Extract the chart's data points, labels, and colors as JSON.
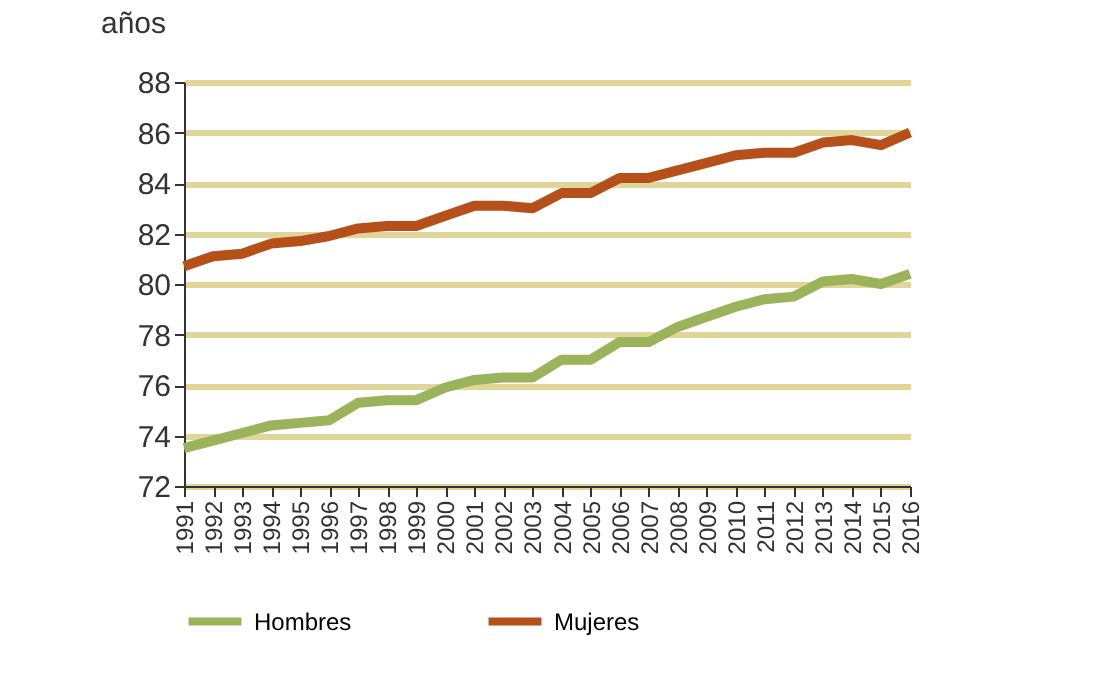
{
  "chart_data": {
    "type": "line",
    "ylabel": "años",
    "categories": [
      "1991",
      "1992",
      "1993",
      "1994",
      "1995",
      "1996",
      "1997",
      "1998",
      "1999",
      "2000",
      "2001",
      "2002",
      "2003",
      "2004",
      "2005",
      "2006",
      "2007",
      "2008",
      "2009",
      "2010",
      "2011",
      "2012",
      "2013",
      "2014",
      "2015",
      "2016"
    ],
    "series": [
      {
        "name": "Hombres",
        "color": "#9bb35a",
        "values": [
          73.5,
          73.8,
          74.1,
          74.4,
          74.5,
          74.6,
          75.3,
          75.4,
          75.4,
          75.9,
          76.2,
          76.3,
          76.3,
          77.0,
          77.0,
          77.7,
          77.7,
          78.3,
          78.7,
          79.1,
          79.4,
          79.5,
          80.1,
          80.2,
          80.0,
          80.4
        ]
      },
      {
        "name": "Mujeres",
        "color": "#b5501a",
        "values": [
          80.7,
          81.1,
          81.2,
          81.6,
          81.7,
          81.9,
          82.2,
          82.3,
          82.3,
          82.7,
          83.1,
          83.1,
          83.0,
          83.6,
          83.6,
          84.2,
          84.2,
          84.5,
          84.8,
          85.1,
          85.2,
          85.2,
          85.6,
          85.7,
          85.5,
          86.0
        ]
      }
    ],
    "ylim": [
      72,
      88
    ],
    "yticks": [
      72,
      74,
      76,
      78,
      80,
      82,
      84,
      86,
      88
    ],
    "grid": "y",
    "legend": "bottom",
    "marker": "none",
    "line_style": "solid"
  }
}
